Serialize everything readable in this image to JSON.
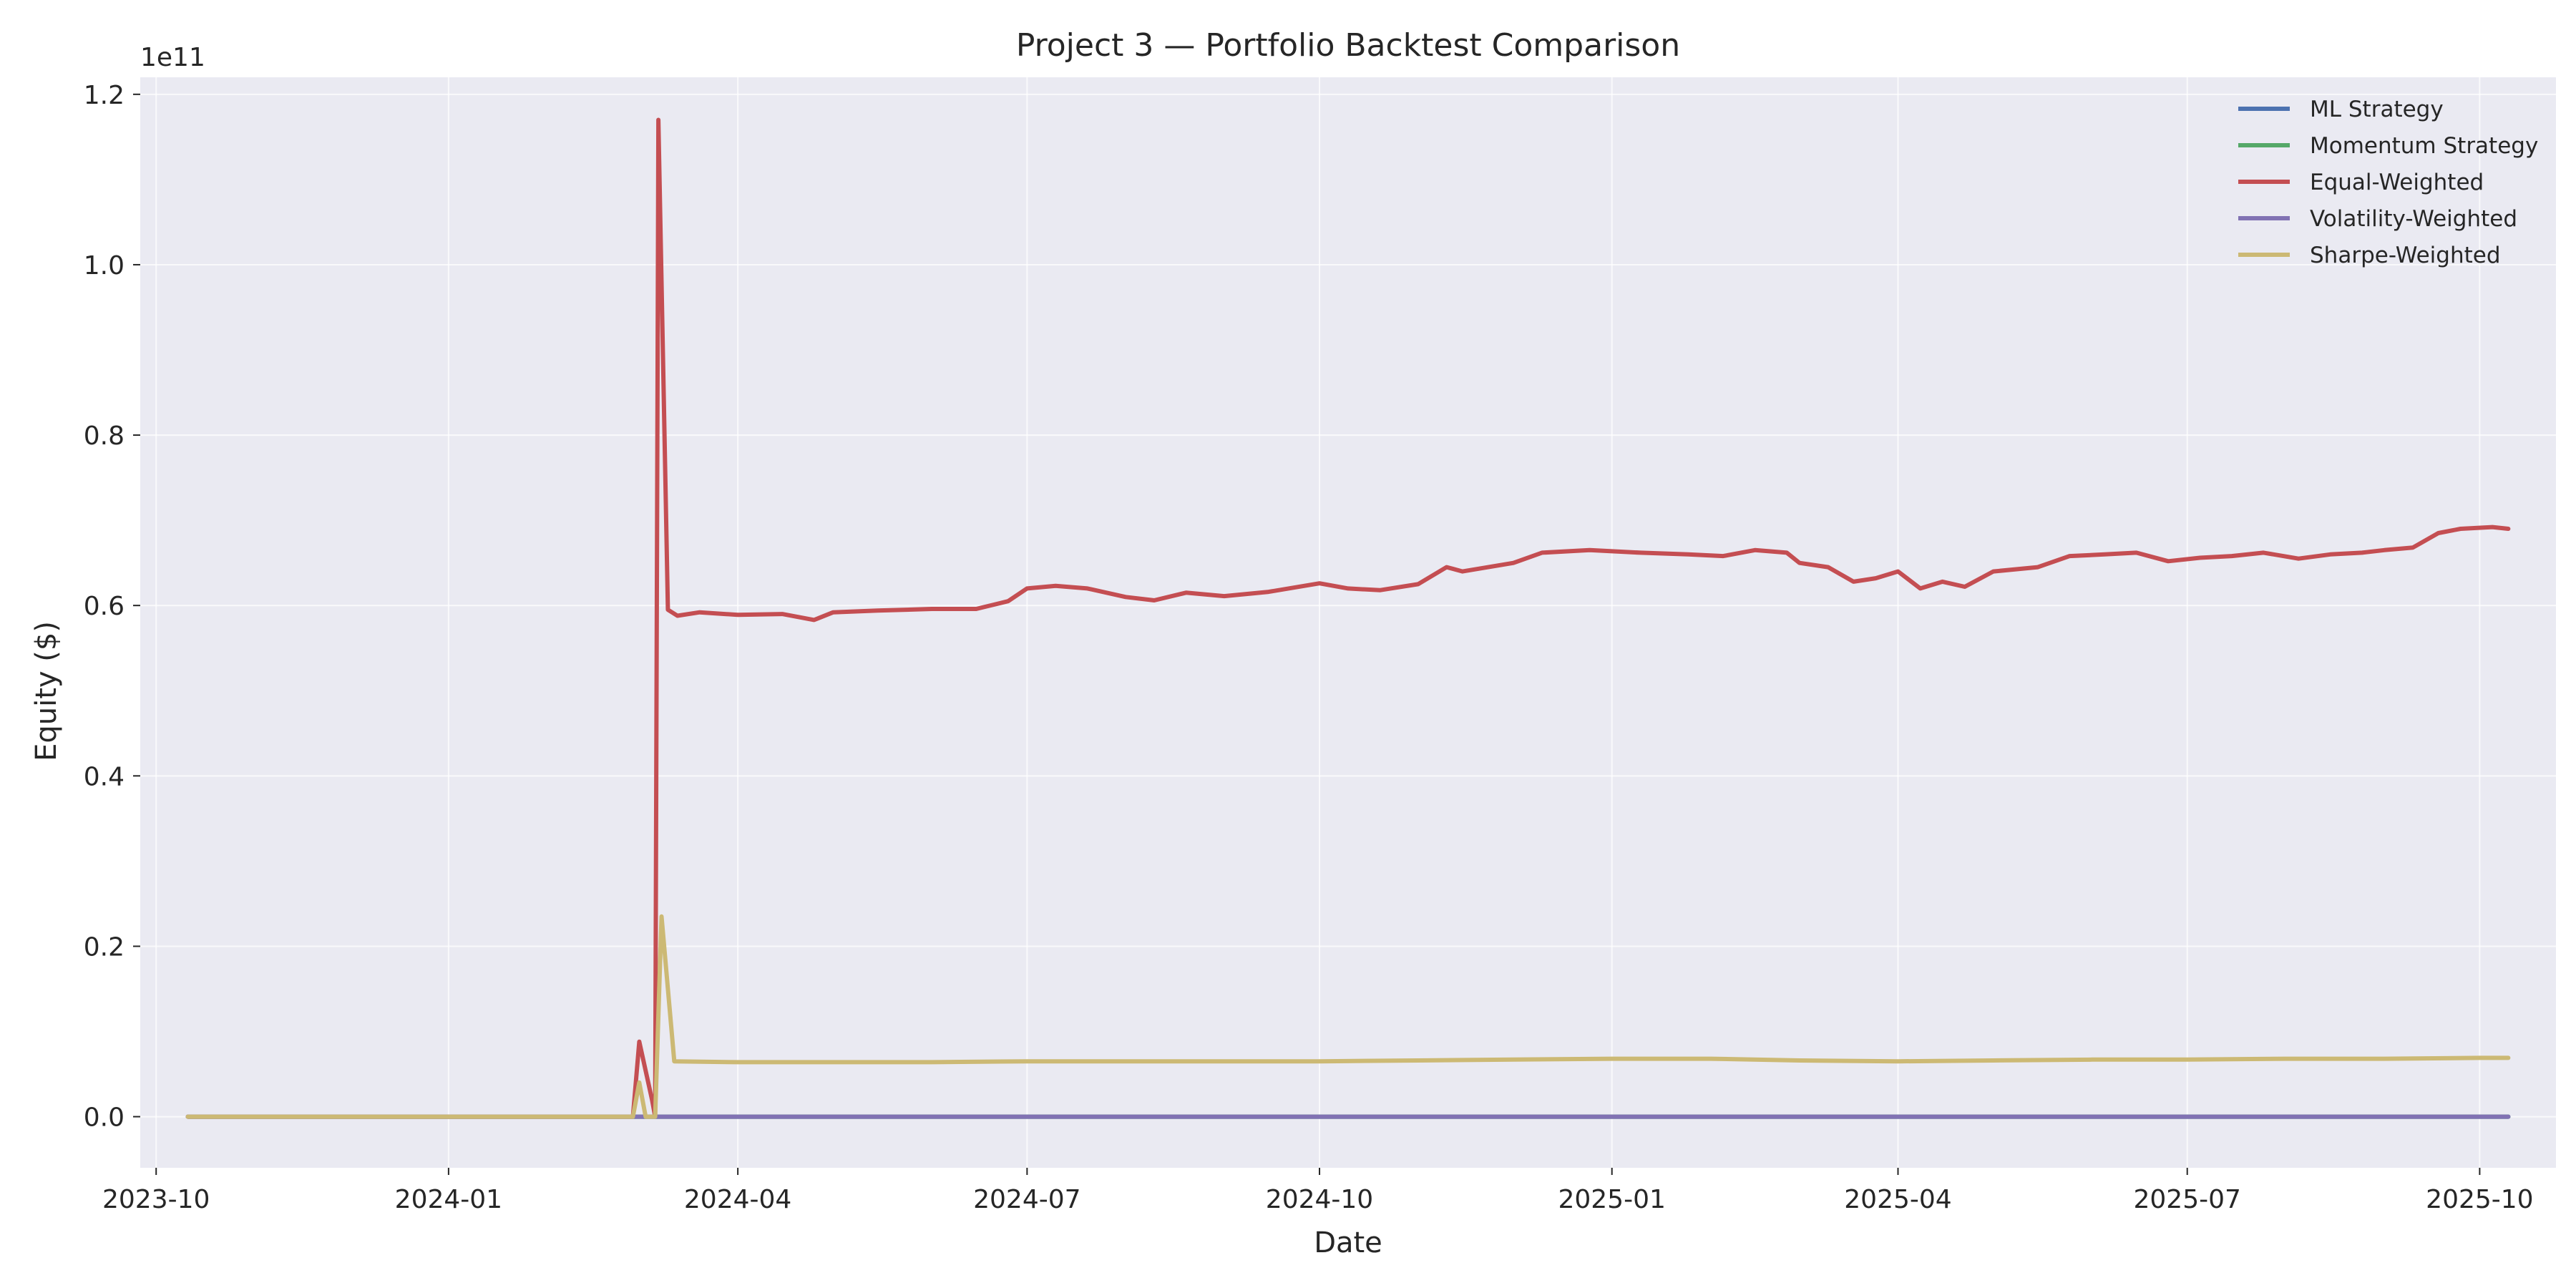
{
  "chart_data": {
    "type": "line",
    "title": "Project 3 — Portfolio Backtest Comparison",
    "xlabel": "Date",
    "ylabel": "Equity ($)",
    "y_offset_label": "1e11",
    "ylim": [
      -0.06,
      1.22
    ],
    "xlim": [
      "2023-09-26",
      "2025-10-25"
    ],
    "yticks": [
      0.0,
      0.2,
      0.4,
      0.6,
      0.8,
      1.0,
      1.2
    ],
    "ytick_labels": [
      "0.0",
      "0.2",
      "0.4",
      "0.6",
      "0.8",
      "1.0",
      "1.2"
    ],
    "xticks": [
      "2023-10-01",
      "2024-01-01",
      "2024-04-01",
      "2024-07-01",
      "2024-10-01",
      "2025-01-01",
      "2025-04-01",
      "2025-07-01",
      "2025-10-01"
    ],
    "xtick_labels": [
      "2023-10",
      "2024-01",
      "2024-04",
      "2024-07",
      "2024-10",
      "2025-01",
      "2025-04",
      "2025-07",
      "2025-10"
    ],
    "grid": true,
    "legend_position": "top-right",
    "series": [
      {
        "name": "ML Strategy",
        "color": "#4c72b0",
        "points": [
          [
            "2023-10-11",
            0.0
          ],
          [
            "2025-10-10",
            0.0
          ]
        ]
      },
      {
        "name": "Momentum Strategy",
        "color": "#55a868",
        "points": [
          [
            "2023-10-11",
            0.0
          ],
          [
            "2025-10-10",
            0.0
          ]
        ]
      },
      {
        "name": "Equal-Weighted",
        "color": "#c44e52",
        "points": [
          [
            "2023-10-11",
            0.0
          ],
          [
            "2024-02-28",
            0.0
          ],
          [
            "2024-03-01",
            0.088
          ],
          [
            "2024-03-05",
            0.02
          ],
          [
            "2024-03-06",
            0.0
          ],
          [
            "2024-03-07",
            1.17
          ],
          [
            "2024-03-10",
            0.595
          ],
          [
            "2024-03-13",
            0.588
          ],
          [
            "2024-03-20",
            0.592
          ],
          [
            "2024-04-01",
            0.589
          ],
          [
            "2024-04-15",
            0.59
          ],
          [
            "2024-04-25",
            0.583
          ],
          [
            "2024-05-01",
            0.592
          ],
          [
            "2024-05-15",
            0.594
          ],
          [
            "2024-06-01",
            0.596
          ],
          [
            "2024-06-15",
            0.596
          ],
          [
            "2024-06-25",
            0.605
          ],
          [
            "2024-07-01",
            0.62
          ],
          [
            "2024-07-10",
            0.623
          ],
          [
            "2024-07-20",
            0.62
          ],
          [
            "2024-08-01",
            0.61
          ],
          [
            "2024-08-10",
            0.606
          ],
          [
            "2024-08-20",
            0.615
          ],
          [
            "2024-09-01",
            0.611
          ],
          [
            "2024-09-15",
            0.616
          ],
          [
            "2024-10-01",
            0.626
          ],
          [
            "2024-10-10",
            0.62
          ],
          [
            "2024-10-20",
            0.618
          ],
          [
            "2024-11-01",
            0.625
          ],
          [
            "2024-11-10",
            0.645
          ],
          [
            "2024-11-15",
            0.64
          ],
          [
            "2024-12-01",
            0.65
          ],
          [
            "2024-12-10",
            0.662
          ],
          [
            "2024-12-25",
            0.665
          ],
          [
            "2025-01-10",
            0.662
          ],
          [
            "2025-01-25",
            0.66
          ],
          [
            "2025-02-05",
            0.658
          ],
          [
            "2025-02-15",
            0.665
          ],
          [
            "2025-02-25",
            0.662
          ],
          [
            "2025-03-01",
            0.65
          ],
          [
            "2025-03-10",
            0.645
          ],
          [
            "2025-03-18",
            0.628
          ],
          [
            "2025-03-25",
            0.632
          ],
          [
            "2025-04-01",
            0.64
          ],
          [
            "2025-04-08",
            0.62
          ],
          [
            "2025-04-15",
            0.628
          ],
          [
            "2025-04-22",
            0.622
          ],
          [
            "2025-05-01",
            0.64
          ],
          [
            "2025-05-15",
            0.645
          ],
          [
            "2025-05-25",
            0.658
          ],
          [
            "2025-06-05",
            0.66
          ],
          [
            "2025-06-15",
            0.662
          ],
          [
            "2025-06-25",
            0.652
          ],
          [
            "2025-07-05",
            0.656
          ],
          [
            "2025-07-15",
            0.658
          ],
          [
            "2025-07-25",
            0.662
          ],
          [
            "2025-08-05",
            0.655
          ],
          [
            "2025-08-15",
            0.66
          ],
          [
            "2025-08-25",
            0.662
          ],
          [
            "2025-09-01",
            0.665
          ],
          [
            "2025-09-10",
            0.668
          ],
          [
            "2025-09-18",
            0.685
          ],
          [
            "2025-09-25",
            0.69
          ],
          [
            "2025-10-05",
            0.692
          ],
          [
            "2025-10-10",
            0.69
          ]
        ]
      },
      {
        "name": "Volatility-Weighted",
        "color": "#8172b3",
        "points": [
          [
            "2023-10-11",
            0.0
          ],
          [
            "2025-10-10",
            0.0
          ]
        ]
      },
      {
        "name": "Sharpe-Weighted",
        "color": "#ccb974",
        "points": [
          [
            "2023-10-11",
            0.0
          ],
          [
            "2024-02-28",
            0.0
          ],
          [
            "2024-03-01",
            0.04
          ],
          [
            "2024-03-03",
            0.0
          ],
          [
            "2024-03-06",
            0.0
          ],
          [
            "2024-03-08",
            0.235
          ],
          [
            "2024-03-12",
            0.065
          ],
          [
            "2024-04-01",
            0.064
          ],
          [
            "2024-05-01",
            0.064
          ],
          [
            "2024-06-01",
            0.064
          ],
          [
            "2024-07-01",
            0.065
          ],
          [
            "2024-08-01",
            0.065
          ],
          [
            "2024-09-01",
            0.065
          ],
          [
            "2024-10-01",
            0.065
          ],
          [
            "2024-11-01",
            0.066
          ],
          [
            "2024-12-01",
            0.067
          ],
          [
            "2025-01-01",
            0.068
          ],
          [
            "2025-02-01",
            0.068
          ],
          [
            "2025-03-01",
            0.066
          ],
          [
            "2025-04-01",
            0.065
          ],
          [
            "2025-05-01",
            0.066
          ],
          [
            "2025-06-01",
            0.067
          ],
          [
            "2025-07-01",
            0.067
          ],
          [
            "2025-08-01",
            0.068
          ],
          [
            "2025-09-01",
            0.068
          ],
          [
            "2025-10-01",
            0.069
          ],
          [
            "2025-10-10",
            0.069
          ]
        ]
      }
    ]
  }
}
